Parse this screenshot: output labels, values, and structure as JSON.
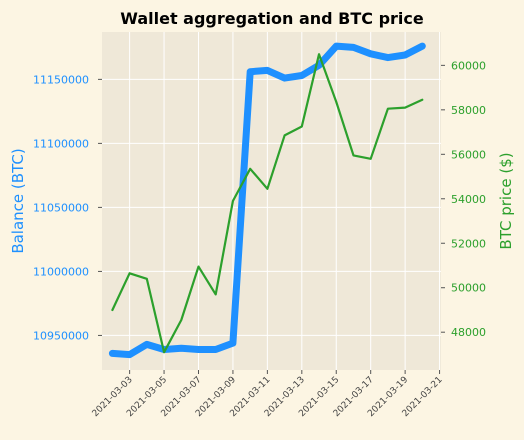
{
  "chart_data": {
    "type": "line",
    "title": "Wall­et aggregation and BTC price",
    "xlabel": "",
    "x_ticks": [
      "2021-03-03",
      "2021-03-05",
      "2021-03-07",
      "2021-03-09",
      "2021-03-11",
      "2021-03-13",
      "2021-03-15",
      "2021-03-17",
      "2021-03-19",
      "2021-03-21"
    ],
    "x": [
      "2021-03-02",
      "2021-03-03",
      "2021-03-04",
      "2021-03-05",
      "2021-03-06",
      "2021-03-07",
      "2021-03-08",
      "2021-03-09",
      "2021-03-10",
      "2021-03-11",
      "2021-03-12",
      "2021-03-13",
      "2021-03-14",
      "2021-03-15",
      "2021-03-16",
      "2021-03-17",
      "2021-03-18",
      "2021-03-19",
      "2021-03-20"
    ],
    "xlim": [
      "2021-03-01T09:30",
      "2021-03-21T02:00"
    ],
    "grid": true,
    "left_axis": {
      "label": "Balance (BTC)",
      "color": "#1e90ff",
      "ylim": [
        10923000,
        11187000
      ],
      "ticks": [
        "10950000",
        "11000000",
        "11050000",
        "11100000",
        "11150000"
      ]
    },
    "right_axis": {
      "label": "BTC price ($)",
      "color": "#2ca02c",
      "ylim": [
        46300,
        61500
      ],
      "ticks": [
        "48000",
        "50000",
        "52000",
        "54000",
        "56000",
        "58000",
        "60000"
      ]
    },
    "series": [
      {
        "axis": "left",
        "color": "#1e90ff",
        "values": [
          10936000,
          10935000,
          10943000,
          10939000,
          10940000,
          10939000,
          10939000,
          10944000,
          11156000,
          11157000,
          11151000,
          11153000,
          11161000,
          11176000,
          11175000,
          11170000,
          11167000,
          11169000,
          11176000
        ]
      },
      {
        "axis": "right",
        "color": "#2ca02c",
        "values": [
          49000,
          50650,
          50400,
          47100,
          48550,
          50950,
          49700,
          53900,
          55350,
          54450,
          56850,
          57250,
          60500,
          58350,
          55950,
          55800,
          58050,
          58100,
          58450
        ]
      }
    ]
  }
}
